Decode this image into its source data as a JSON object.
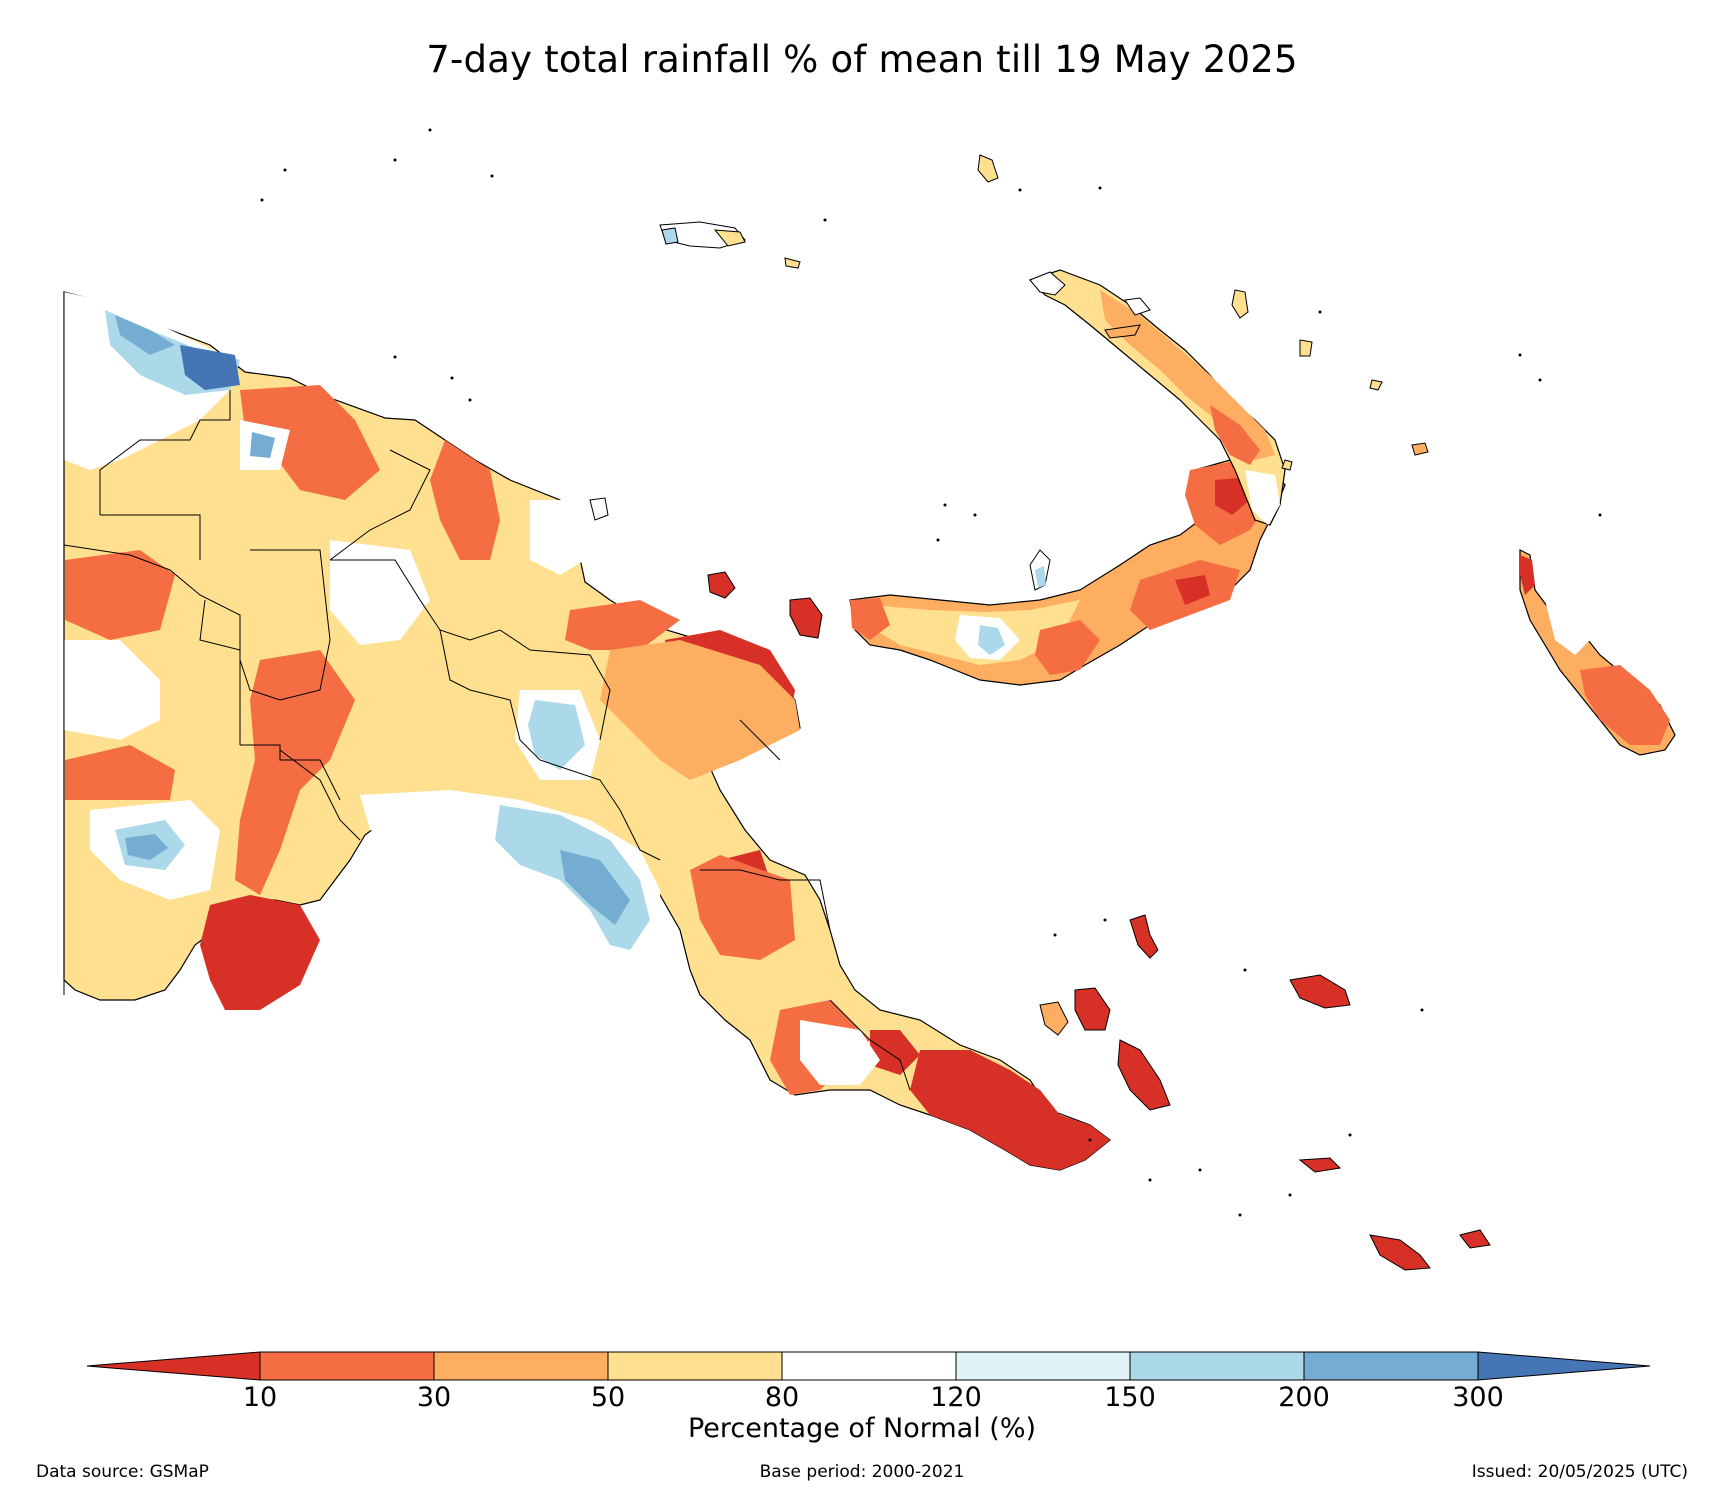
{
  "title": "7-day total rainfall % of mean till 19 May 2025",
  "colorbar": {
    "label": "Percentage of Normal (%)",
    "ticks": [
      "10",
      "30",
      "50",
      "80",
      "120",
      "150",
      "200",
      "300"
    ],
    "colors": {
      "below_10": "#d73027",
      "10_30": "#f46d43",
      "30_50": "#fdae61",
      "50_80": "#fee090",
      "80_120": "#ffffff",
      "120_150": "#e0f3f8",
      "150_200": "#abd9e9",
      "200_300": "#74add1",
      "above_300": "#4575b4"
    }
  },
  "footer": {
    "source": "Data source: GSMaP",
    "base_period": "Base period: 2000-2021",
    "issued": "Issued: 20/05/2025 (UTC)"
  }
}
